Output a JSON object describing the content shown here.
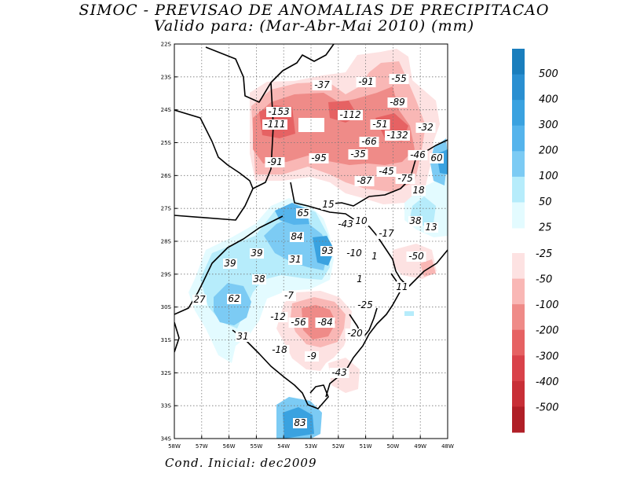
{
  "title_line1": "SIMOC - PREVISAO DE ANOMALIAS DE PRECIPITACAO",
  "title_line2": "Valido para: (Mar-Abr-Mai 2010) (mm)",
  "footer": "Cond. Inicial: dec2009",
  "lat_labels": [
    "22S",
    "23S",
    "24S",
    "25S",
    "26S",
    "27S",
    "28S",
    "29S",
    "30S",
    "31S",
    "32S",
    "33S",
    "34S"
  ],
  "lon_labels": [
    "58W",
    "57W",
    "56W",
    "55W",
    "54W",
    "53W",
    "52W",
    "51W",
    "50W",
    "49W",
    "48W"
  ],
  "colorbar_positive": [
    "500",
    "400",
    "300",
    "200",
    "100",
    "50",
    "25"
  ],
  "colorbar_negative": [
    "-25",
    "-50",
    "-100",
    "-200",
    "-300",
    "-400",
    "-500"
  ],
  "colors": {
    "pos": [
      "#1a7ebd",
      "#2a8fd1",
      "#3aa2e0",
      "#55b4ec",
      "#7ccbf4",
      "#b6ecfb",
      "#e3fbff"
    ],
    "neg": [
      "#fde2e2",
      "#f9b7b5",
      "#ef8b88",
      "#e66263",
      "#d9424a",
      "#c82f37",
      "#b01f27"
    ]
  },
  "contour_labels": [
    {
      "text": "-37"
    },
    {
      "text": "-91"
    },
    {
      "text": "-55"
    },
    {
      "text": "-89"
    },
    {
      "text": "-153"
    },
    {
      "text": "-112"
    },
    {
      "text": "-111"
    },
    {
      "text": "-51"
    },
    {
      "text": "-32"
    },
    {
      "text": "-132"
    },
    {
      "text": "-66"
    },
    {
      "text": "-91"
    },
    {
      "text": "-95"
    },
    {
      "text": "-35"
    },
    {
      "text": "-46"
    },
    {
      "text": "60"
    },
    {
      "text": "-45"
    },
    {
      "text": "-75"
    },
    {
      "text": "-87"
    },
    {
      "text": "18"
    },
    {
      "text": "15"
    },
    {
      "text": "65"
    },
    {
      "text": "-43"
    },
    {
      "text": "10"
    },
    {
      "text": "38"
    },
    {
      "text": "13"
    },
    {
      "text": "-17"
    },
    {
      "text": "84"
    },
    {
      "text": "39"
    },
    {
      "text": "93"
    },
    {
      "text": "-10"
    },
    {
      "text": "1"
    },
    {
      "text": "-50"
    },
    {
      "text": "31"
    },
    {
      "text": "39"
    },
    {
      "text": "38"
    },
    {
      "text": "1"
    },
    {
      "text": "11"
    },
    {
      "text": "27"
    },
    {
      "text": "62"
    },
    {
      "text": "-7"
    },
    {
      "text": "-25"
    },
    {
      "text": "-12"
    },
    {
      "text": "-56"
    },
    {
      "text": "-84"
    },
    {
      "text": "31"
    },
    {
      "text": "-20"
    },
    {
      "text": "-18"
    },
    {
      "text": "-9"
    },
    {
      "text": "-43"
    },
    {
      "text": "83"
    }
  ]
}
